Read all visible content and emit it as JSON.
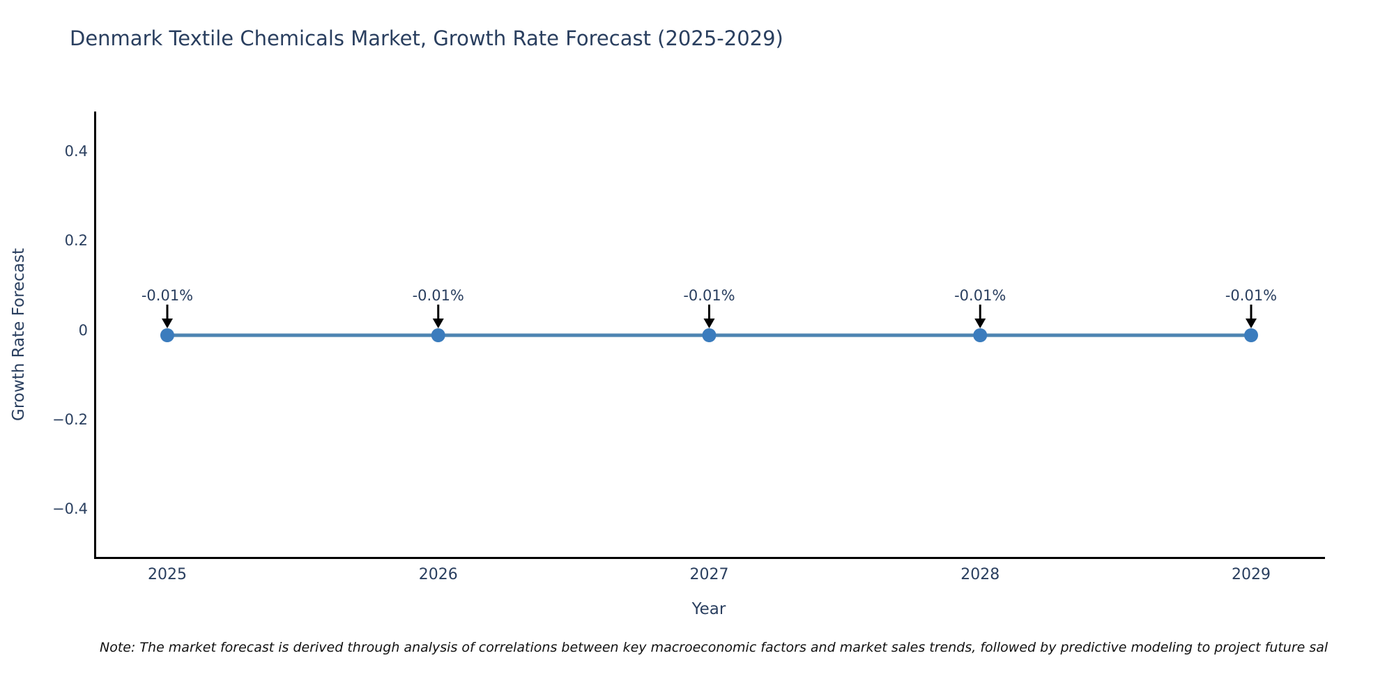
{
  "title": "Denmark Textile Chemicals Market, Growth Rate Forecast (2025-2029)",
  "note": "Note: The market forecast is derived through analysis of correlations between key macroeconomic factors and market sales trends, followed by predictive modeling to project future sal",
  "chart_data": {
    "type": "line",
    "title": "Denmark Textile Chemicals Market, Growth Rate Forecast (2025-2029)",
    "xlabel": "Year",
    "ylabel": "Growth Rate Forecast",
    "x": [
      2025,
      2026,
      2027,
      2028,
      2029
    ],
    "y": [
      -0.01,
      -0.01,
      -0.01,
      -0.01,
      -0.01
    ],
    "point_labels": [
      "-0.01%",
      "-0.01%",
      "-0.01%",
      "-0.01%",
      "-0.01%"
    ],
    "x_tick_labels": [
      "2025",
      "2026",
      "2027",
      "2028",
      "2029"
    ],
    "y_ticks": [
      {
        "value": 0.4,
        "label": "0.4"
      },
      {
        "value": 0.2,
        "label": "0.2"
      },
      {
        "value": 0,
        "label": "0"
      },
      {
        "value": -0.2,
        "label": "−0.2"
      },
      {
        "value": -0.4,
        "label": "−0.4"
      }
    ],
    "ylim": [
      -0.51,
      0.49
    ],
    "grid": false,
    "legend_position": "none",
    "markers": true,
    "annotations_have_arrows": true,
    "colors": {
      "line": "#4d84b2",
      "marker": "#3b7cbd",
      "arrow": "#000000",
      "axis_line": "#000000",
      "text": "#2a3f5f",
      "note_text": "#111111",
      "background": "#ffffff"
    }
  }
}
